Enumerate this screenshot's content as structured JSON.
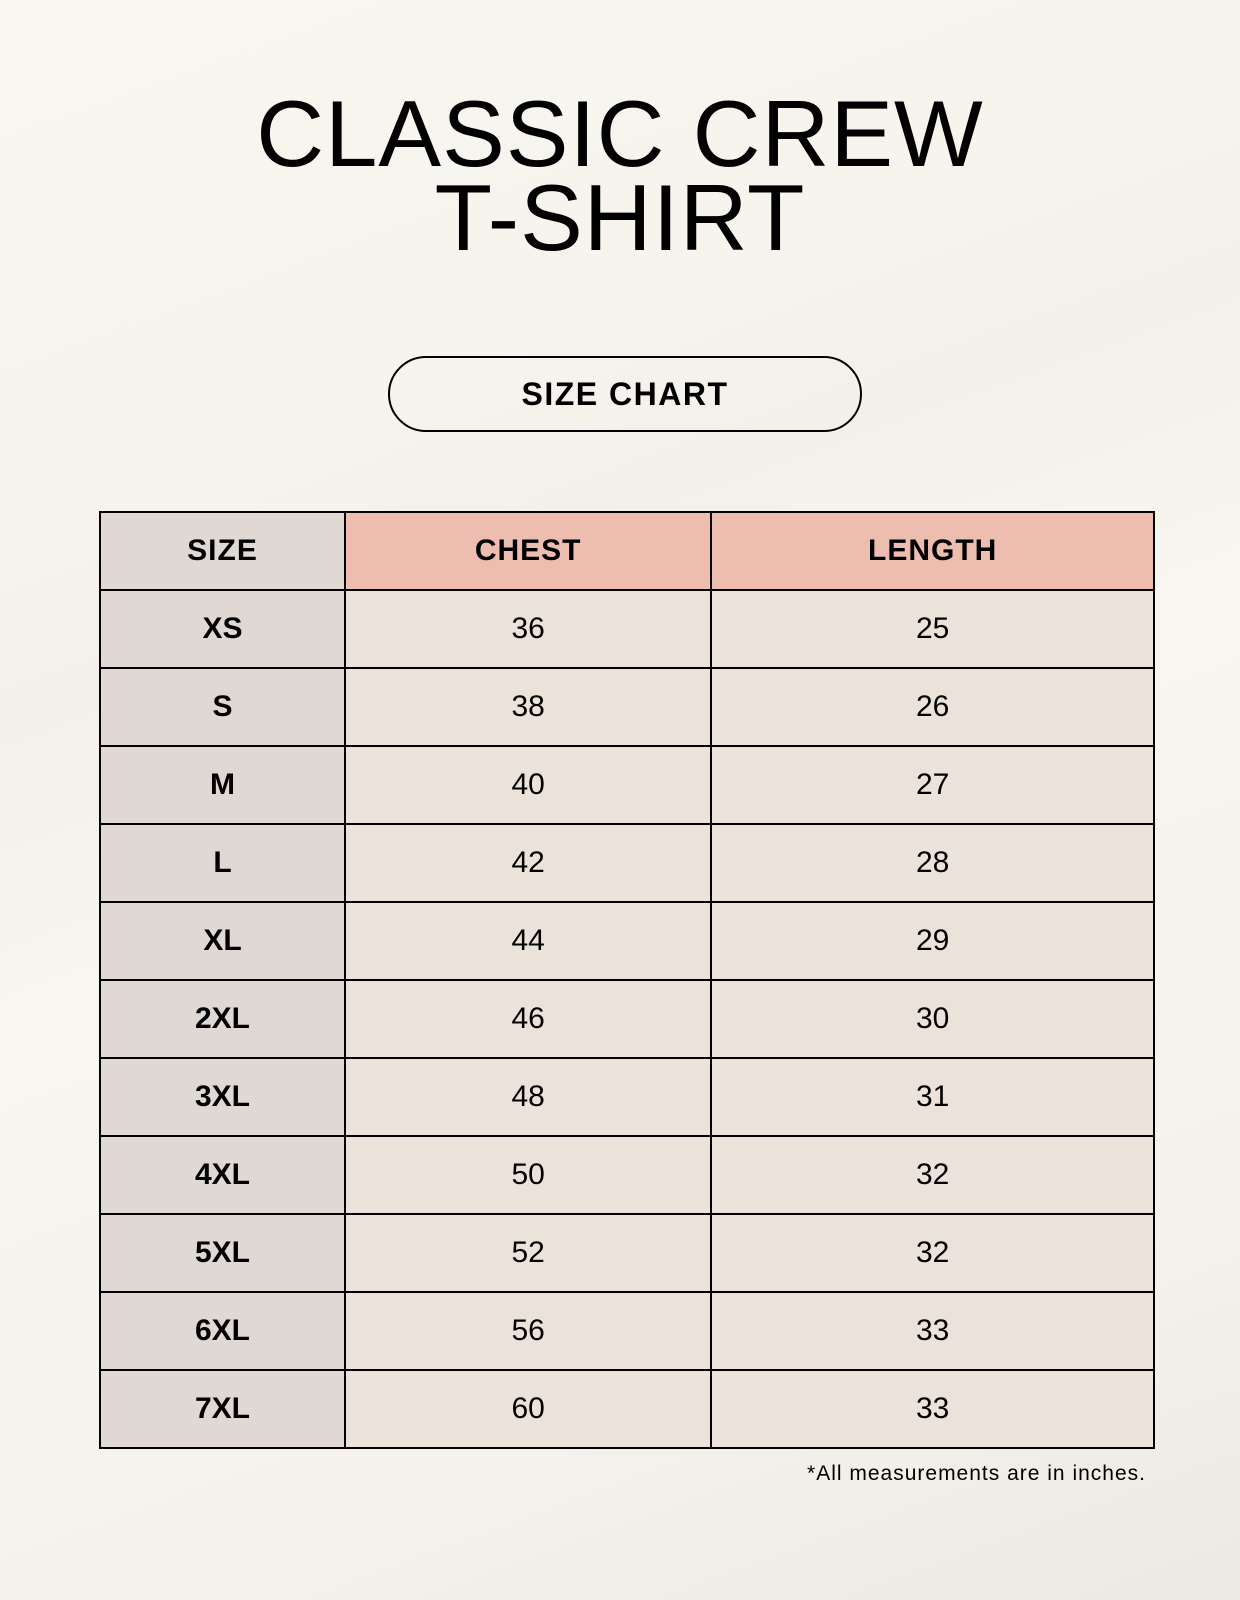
{
  "title": {
    "line1": "CLASSIC CREW",
    "line2": "T-SHIRT"
  },
  "badge": "SIZE CHART",
  "table": {
    "headers": [
      "SIZE",
      "CHEST",
      "LENGTH"
    ],
    "rows": [
      [
        "XS",
        "36",
        "25"
      ],
      [
        "S",
        "38",
        "26"
      ],
      [
        "M",
        "40",
        "27"
      ],
      [
        "L",
        "42",
        "28"
      ],
      [
        "XL",
        "44",
        "29"
      ],
      [
        "2XL",
        "46",
        "30"
      ],
      [
        "3XL",
        "48",
        "31"
      ],
      [
        "4XL",
        "50",
        "32"
      ],
      [
        "5XL",
        "52",
        "32"
      ],
      [
        "6XL",
        "56",
        "33"
      ],
      [
        "7XL",
        "60",
        "33"
      ]
    ]
  },
  "footnote": "*All measurements are in inches.",
  "colors": {
    "header_accent": "#edbdaf",
    "size_column": "#e0d9d3",
    "value_cells": "#ebe3d9"
  }
}
